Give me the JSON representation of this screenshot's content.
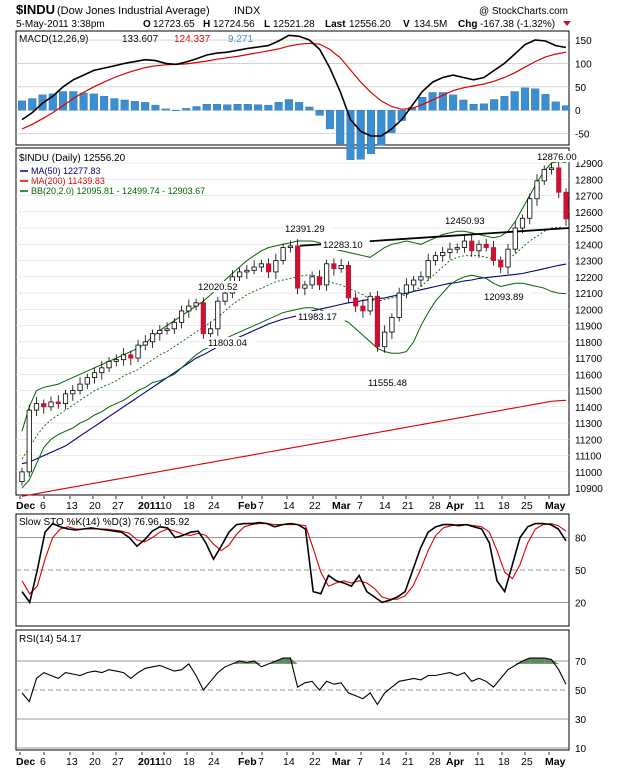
{
  "header": {
    "symbol": "$INDU",
    "name": "(Dow Jones Industrial Average)",
    "exchange": "INDX",
    "copyright": "@ StockCharts.com",
    "date": "5-May-2011 3:38pm",
    "open_label": "O",
    "open": "12723.65",
    "high_label": "H",
    "high": "12724.56",
    "low_label": "L",
    "low": "12521.28",
    "last_label": "Last",
    "last": "12556.20",
    "volume_label": "V",
    "volume": "134.5M",
    "change_label": "Chg",
    "change": "-167.38 (-1.32%)"
  },
  "colors": {
    "black": "#000000",
    "red": "#dd0000",
    "green": "#006600",
    "navy": "#000080",
    "hist": "#3b8ed0",
    "candle_down": "#cc1133",
    "rsi_fill": "#4a7a4a"
  },
  "chart_data": [
    {
      "type": "line",
      "panel": "macd",
      "title": "MACD(12,26,9)",
      "macd_label": "133.607",
      "signal_label": "124.337",
      "hist_label": "9.271",
      "ylim": [
        -70,
        165
      ],
      "yticks": [
        150,
        100,
        50,
        0,
        -50
      ],
      "series": [
        {
          "name": "MACD(12,26,9)",
          "color": "#000000",
          "values": [
            -20,
            -5,
            15,
            30,
            50,
            65,
            75,
            85,
            90,
            95,
            100,
            104,
            108,
            106,
            100,
            98,
            103,
            110,
            118,
            122,
            124,
            128,
            132,
            135,
            138,
            148,
            160,
            158,
            150,
            130,
            90,
            40,
            -20,
            -45,
            -55,
            -55,
            -40,
            -20,
            10,
            40,
            60,
            70,
            75,
            70,
            65,
            70,
            85,
            100,
            120,
            140,
            150,
            148,
            138,
            134
          ]
        },
        {
          "name": "Signal",
          "color": "#dd0000",
          "values": [
            -40,
            -30,
            -18,
            -5,
            10,
            25,
            38,
            50,
            60,
            70,
            78,
            85,
            91,
            95,
            97,
            98,
            99,
            102,
            105,
            109,
            112,
            115,
            119,
            123,
            127,
            131,
            137,
            141,
            143,
            141,
            130,
            112,
            86,
            60,
            38,
            20,
            8,
            2,
            4,
            12,
            22,
            32,
            42,
            48,
            52,
            56,
            62,
            70,
            80,
            92,
            104,
            114,
            120,
            124
          ]
        },
        {
          "name": "Histogram",
          "color": "#3b8ed0",
          "values": [
            20,
            25,
            33,
            35,
            40,
            40,
            37,
            35,
            30,
            25,
            22,
            19,
            17,
            11,
            3,
            0,
            4,
            8,
            13,
            13,
            12,
            13,
            13,
            12,
            11,
            17,
            23,
            17,
            7,
            -11,
            -40,
            -72,
            -106,
            -105,
            -93,
            -75,
            -48,
            -22,
            6,
            28,
            38,
            38,
            33,
            22,
            13,
            14,
            23,
            30,
            40,
            48,
            46,
            34,
            18,
            10
          ]
        }
      ]
    },
    {
      "type": "candlestick",
      "panel": "price",
      "title": "$INDU (Daily) 12556.20",
      "ylim": [
        10870,
        12980
      ],
      "yticks": [
        12900,
        12800,
        12700,
        12600,
        12500,
        12400,
        12300,
        12200,
        12100,
        12000,
        11900,
        11800,
        11700,
        11600,
        11500,
        11400,
        11300,
        11200,
        11100,
        11000,
        10900
      ],
      "x_labels": [
        "Dec",
        "6",
        "13",
        "20",
        "27",
        "2011",
        "10",
        "18",
        "24",
        "Feb",
        "7",
        "14",
        "22",
        "Mar",
        "7",
        "14",
        "21",
        "28",
        "Apr",
        "11",
        "18",
        "25",
        "May"
      ],
      "legend": [
        {
          "label": "MA(50) 12277.83",
          "color": "#000080"
        },
        {
          "label": "MA(200) 11439.83",
          "color": "#dd0000"
        },
        {
          "label": "BB(20,2.0) 12095.81 - 12499.74 - 12903.67",
          "color": "#006600"
        }
      ],
      "annotations": [
        "12876.00",
        "12450.93",
        "12391.29",
        "12283.10",
        "12020.52",
        "11983.17",
        "11803.04",
        "11555.48",
        "12093.89"
      ],
      "close": [
        11000,
        11380,
        11420,
        11400,
        11430,
        11420,
        11480,
        11500,
        11540,
        11580,
        11610,
        11640,
        11680,
        11690,
        11720,
        11700,
        11780,
        11800,
        11850,
        11870,
        11880,
        11920,
        11990,
        12020,
        12040,
        11850,
        11880,
        12050,
        12100,
        12200,
        12230,
        12240,
        12260,
        12280,
        12230,
        12300,
        12380,
        12390,
        12130,
        12150,
        12200,
        12150,
        12280,
        12250,
        12270,
        12070,
        12020,
        11990,
        12080,
        11770,
        11860,
        11950,
        12100,
        12150,
        12180,
        12200,
        12300,
        12330,
        12350,
        12370,
        12380,
        12420,
        12360,
        12400,
        12380,
        12300,
        12260,
        12370,
        12500,
        12560,
        12680,
        12790,
        12860,
        12870,
        12720,
        12556
      ],
      "ma50": [
        11050,
        11060,
        11080,
        11100,
        11120,
        11140,
        11160,
        11190,
        11220,
        11250,
        11280,
        11310,
        11340,
        11370,
        11400,
        11430,
        11460,
        11490,
        11520,
        11550,
        11580,
        11610,
        11640,
        11670,
        11700,
        11720,
        11745,
        11770,
        11790,
        11810,
        11830,
        11850,
        11870,
        11890,
        11910,
        11925,
        11940,
        11950,
        11960,
        11975,
        11990,
        12000,
        12010,
        12020,
        12030,
        12040,
        12045,
        12055,
        12060,
        12065,
        12070,
        12080,
        12090,
        12100,
        12110,
        12120,
        12130,
        12140,
        12150,
        12160,
        12165,
        12175,
        12180,
        12190,
        12195,
        12200,
        12205,
        12210,
        12215,
        12220,
        12230,
        12240,
        12250,
        12260,
        12270,
        12278
      ],
      "ma200": [
        10850,
        10858,
        10866,
        10874,
        10882,
        10890,
        10898,
        10906,
        10914,
        10922,
        10930,
        10938,
        10946,
        10954,
        10962,
        10970,
        10978,
        10986,
        10994,
        11002,
        11010,
        11018,
        11026,
        11034,
        11042,
        11050,
        11058,
        11066,
        11074,
        11082,
        11090,
        11098,
        11106,
        11114,
        11122,
        11130,
        11138,
        11146,
        11154,
        11162,
        11170,
        11178,
        11186,
        11194,
        11202,
        11210,
        11218,
        11226,
        11234,
        11242,
        11250,
        11258,
        11266,
        11274,
        11282,
        11290,
        11298,
        11306,
        11314,
        11322,
        11330,
        11338,
        11346,
        11354,
        11362,
        11370,
        11378,
        11386,
        11394,
        11402,
        11410,
        11418,
        11426,
        11434,
        11438,
        11440
      ],
      "bb_upper": [
        11250,
        11400,
        11500,
        11520,
        11530,
        11540,
        11560,
        11580,
        11600,
        11620,
        11640,
        11660,
        11680,
        11700,
        11720,
        11740,
        11760,
        11790,
        11830,
        11870,
        11900,
        11930,
        11960,
        11990,
        12020,
        12050,
        12090,
        12130,
        12180,
        12220,
        12260,
        12300,
        12330,
        12360,
        12380,
        12390,
        12400,
        12410,
        12420,
        12420,
        12420,
        12410,
        12390,
        12370,
        12360,
        12350,
        12340,
        12330,
        12320,
        12350,
        12380,
        12400,
        12410,
        12420,
        12410,
        12400,
        12420,
        12440,
        12460,
        12470,
        12480,
        12480,
        12470,
        12460,
        12450,
        12440,
        12450,
        12480,
        12540,
        12620,
        12700,
        12780,
        12850,
        12900,
        12910,
        12904
      ],
      "bb_lower": [
        10900,
        10950,
        11050,
        11150,
        11200,
        11230,
        11250,
        11270,
        11300,
        11320,
        11350,
        11370,
        11400,
        11420,
        11440,
        11470,
        11500,
        11520,
        11550,
        11560,
        11580,
        11600,
        11640,
        11680,
        11720,
        11750,
        11770,
        11790,
        11820,
        11840,
        11860,
        11880,
        11900,
        11920,
        11940,
        11960,
        11980,
        11990,
        12000,
        12010,
        12010,
        12000,
        11980,
        11960,
        11940,
        11920,
        11880,
        11840,
        11800,
        11760,
        11740,
        11730,
        11730,
        11740,
        11800,
        11900,
        11980,
        12050,
        12100,
        12150,
        12180,
        12200,
        12210,
        12200,
        12190,
        12160,
        12140,
        12150,
        12160,
        12160,
        12150,
        12140,
        12130,
        12110,
        12100,
        12096
      ],
      "bb_mid": [
        11080,
        11150,
        11220,
        11280,
        11320,
        11350,
        11380,
        11410,
        11440,
        11470,
        11500,
        11520,
        11540,
        11560,
        11590,
        11610,
        11630,
        11660,
        11690,
        11720,
        11740,
        11770,
        11800,
        11830,
        11860,
        11890,
        11920,
        11950,
        11990,
        12030,
        12060,
        12090,
        12110,
        12130,
        12150,
        12170,
        12180,
        12190,
        12200,
        12210,
        12210,
        12200,
        12180,
        12160,
        12150,
        12130,
        12110,
        12090,
        12060,
        12050,
        12060,
        12070,
        12080,
        12090,
        12110,
        12140,
        12180,
        12220,
        12260,
        12300,
        12320,
        12330,
        12330,
        12330,
        12320,
        12310,
        12300,
        12310,
        12340,
        12380,
        12420,
        12450,
        12480,
        12500,
        12505,
        12500
      ]
    },
    {
      "type": "line",
      "panel": "stochastic",
      "title": "Slow STO %K(14) %D(3) 76.96, 85.92",
      "ylim": [
        0,
        100
      ],
      "yticks": [
        80,
        50,
        20
      ],
      "series": [
        {
          "name": "%K(14)",
          "color": "#000000",
          "values": [
            30,
            20,
            50,
            85,
            93,
            90,
            88,
            87,
            88,
            89,
            88,
            87,
            86,
            85,
            80,
            72,
            78,
            86,
            90,
            89,
            80,
            82,
            85,
            86,
            75,
            60,
            72,
            85,
            92,
            93,
            93,
            94,
            93,
            90,
            92,
            93,
            92,
            88,
            30,
            28,
            45,
            40,
            38,
            35,
            45,
            30,
            25,
            20,
            22,
            25,
            30,
            50,
            70,
            85,
            90,
            92,
            92,
            91,
            92,
            90,
            88,
            75,
            40,
            30,
            55,
            80,
            90,
            93,
            93,
            92,
            88,
            77
          ]
        },
        {
          "name": "%D(3)",
          "color": "#dd0000",
          "values": [
            40,
            28,
            35,
            60,
            80,
            88,
            90,
            88,
            88,
            88,
            88,
            88,
            87,
            86,
            84,
            78,
            76,
            80,
            85,
            88,
            86,
            83,
            82,
            84,
            82,
            74,
            68,
            73,
            83,
            90,
            92,
            93,
            93,
            92,
            92,
            92,
            92,
            91,
            70,
            48,
            35,
            38,
            40,
            38,
            40,
            38,
            33,
            25,
            23,
            23,
            26,
            35,
            50,
            68,
            82,
            89,
            91,
            92,
            92,
            91,
            90,
            85,
            68,
            48,
            42,
            55,
            75,
            88,
            92,
            93,
            91,
            86
          ]
        }
      ]
    },
    {
      "type": "line",
      "panel": "rsi",
      "title": "RSI(14) 54.17",
      "ylim": [
        10,
        90
      ],
      "yticks": [
        70,
        50,
        30,
        10
      ],
      "series": [
        {
          "name": "RSI(14)",
          "color": "#000000",
          "values": [
            48,
            42,
            58,
            62,
            60,
            58,
            62,
            61,
            60,
            62,
            63,
            62,
            64,
            63,
            62,
            58,
            62,
            65,
            66,
            67,
            65,
            63,
            64,
            68,
            60,
            50,
            56,
            62,
            66,
            68,
            70,
            69,
            70,
            66,
            68,
            70,
            72,
            72,
            52,
            55,
            56,
            50,
            56,
            54,
            55,
            48,
            46,
            44,
            48,
            40,
            48,
            52,
            56,
            57,
            58,
            57,
            60,
            60,
            61,
            62,
            60,
            62,
            56,
            58,
            56,
            52,
            58,
            64,
            67,
            70,
            72,
            72,
            72,
            71,
            64,
            54
          ]
        }
      ]
    }
  ]
}
